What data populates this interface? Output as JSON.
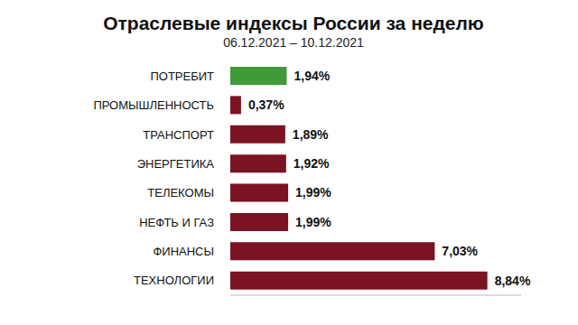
{
  "chart_data": {
    "type": "bar",
    "orientation": "horizontal",
    "title": "Отраслевые индексы России за неделю",
    "subtitle": "06.12.2021 – 10.12.2021",
    "categories": [
      "ПОТРЕБИТ",
      "ПРОМЫШЛЕННОСТЬ",
      "ТРАНСПОРТ",
      "ЭНЕРГЕТИКА",
      "ТЕЛЕКОМЫ",
      "НЕФТЬ И ГАЗ",
      "ФИНАНСЫ",
      "ТЕХНОЛОГИИ"
    ],
    "values": [
      1.94,
      0.37,
      1.89,
      1.92,
      1.99,
      1.99,
      7.03,
      8.84
    ],
    "value_labels": [
      "1,94%",
      "0,37%",
      "1,89%",
      "1,92%",
      "1,99%",
      "1,99%",
      "7,03%",
      "8,84%"
    ],
    "colors": [
      "#3f9a3a",
      "#7b1322",
      "#7b1322",
      "#7b1322",
      "#7b1322",
      "#7b1322",
      "#7b1322",
      "#7b1322"
    ],
    "xlim": [
      0,
      10
    ],
    "data_labels": true,
    "tick_labels": "y",
    "grid": false
  }
}
